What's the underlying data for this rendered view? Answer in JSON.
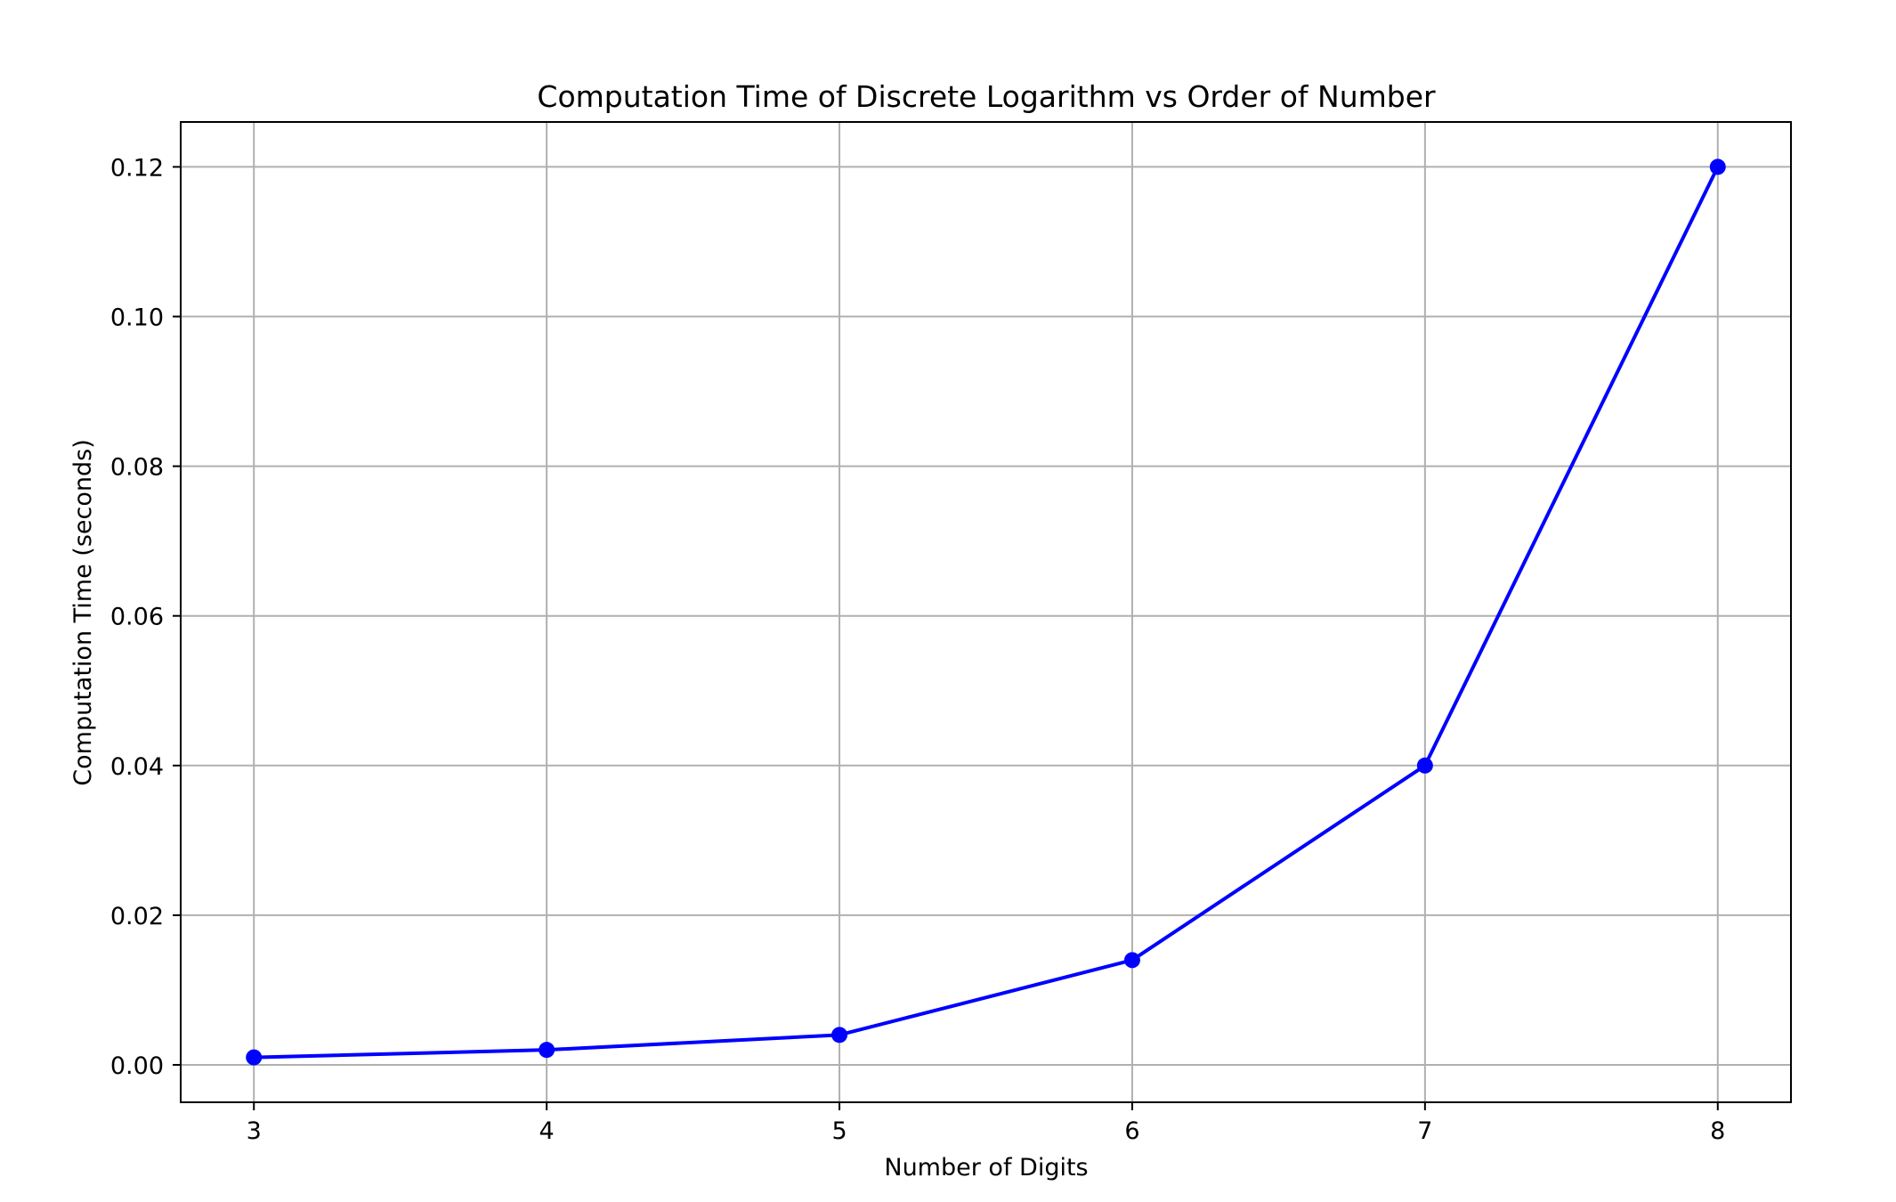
{
  "chart_data": {
    "type": "line",
    "title": "Computation Time of Discrete Logarithm vs Order of Number",
    "xlabel": "Number of Digits",
    "ylabel": "Computation Time (seconds)",
    "x": [
      3,
      4,
      5,
      6,
      7,
      8
    ],
    "series": [
      {
        "values": [
          0.001,
          0.002,
          0.004,
          0.014,
          0.04,
          0.12
        ],
        "color": "#0000ff",
        "marker": "circle"
      }
    ],
    "xlim": [
      2.75,
      8.25
    ],
    "ylim": [
      -0.005,
      0.126
    ],
    "x_ticks": [
      3,
      4,
      5,
      6,
      7,
      8
    ],
    "x_tick_labels": [
      "3",
      "4",
      "5",
      "6",
      "7",
      "8"
    ],
    "y_ticks": [
      0.0,
      0.02,
      0.04,
      0.06,
      0.08,
      0.1,
      0.12
    ],
    "y_tick_labels": [
      "0.00",
      "0.02",
      "0.04",
      "0.06",
      "0.08",
      "0.10",
      "0.12"
    ],
    "grid": true,
    "grid_color": "#b0b0b0",
    "legend": false
  }
}
